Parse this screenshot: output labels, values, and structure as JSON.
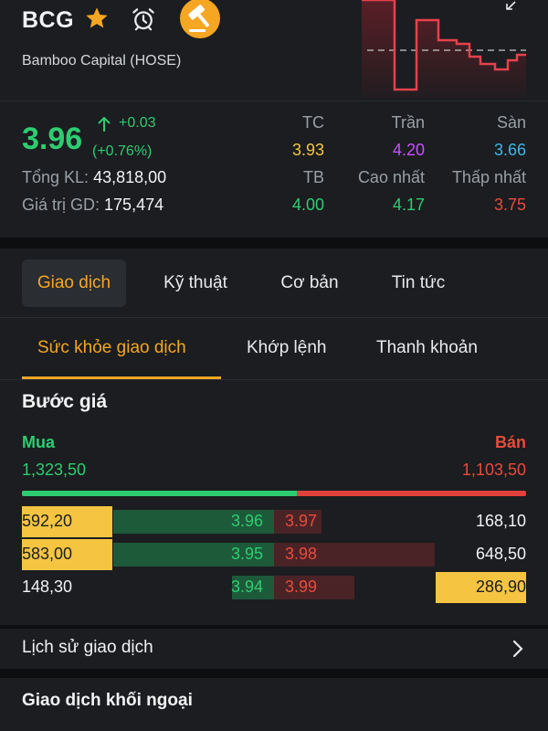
{
  "header": {
    "ticker": "BCG",
    "company": "Bamboo Capital (HOSE)",
    "icons": [
      "star-icon",
      "alarm-clock-icon",
      "auction-gavel-icon",
      "collapse-icon"
    ]
  },
  "quote": {
    "price": "3.96",
    "change": "+0.03",
    "change_pct": "(+0.76%)",
    "total_volume_label": "Tổng KL:",
    "total_volume": "43,818,00",
    "trade_value_label": "Giá trị GD:",
    "trade_value": "175,474",
    "stats": {
      "tc_label": "TC",
      "tc": "3.93",
      "tran_label": "Trần",
      "tran": "4.20",
      "san_label": "Sàn",
      "san": "3.66",
      "tb_label": "TB",
      "tb": "4.00",
      "cao_label": "Cao nhất",
      "cao": "4.17",
      "thap_label": "Thấp nhất",
      "thap": "3.75"
    }
  },
  "tabs": [
    "Giao dịch",
    "Kỹ thuật",
    "Cơ bản",
    "Tin tức"
  ],
  "subtabs": [
    "Sức khỏe giao dịch",
    "Khớp lệnh",
    "Thanh khoản"
  ],
  "order_book": {
    "title": "Bước giá",
    "buy_label": "Mua",
    "sell_label": "Bán",
    "buy_total": "1,323,50",
    "sell_total": "1,103,50",
    "buy_ratio": 0.545,
    "rows": [
      {
        "buy_vol": "592,20",
        "buy_px": "3.96",
        "sell_px": "3.97",
        "sell_vol": "168,10"
      },
      {
        "buy_vol": "583,00",
        "buy_px": "3.95",
        "sell_px": "3.98",
        "sell_vol": "648,50"
      },
      {
        "buy_vol": "148,30",
        "buy_px": "3.94",
        "sell_px": "3.99",
        "sell_vol": "286,90"
      }
    ]
  },
  "history_label": "Lịch sử giao dịch",
  "foreign_label": "Giao dịch khối ngoại",
  "colors": {
    "up": "#2ecc71",
    "down": "#e74c3c",
    "ref": "#f5c542",
    "ceiling": "#c651ff",
    "floor": "#3fb6e8",
    "accent": "#f5a623"
  }
}
